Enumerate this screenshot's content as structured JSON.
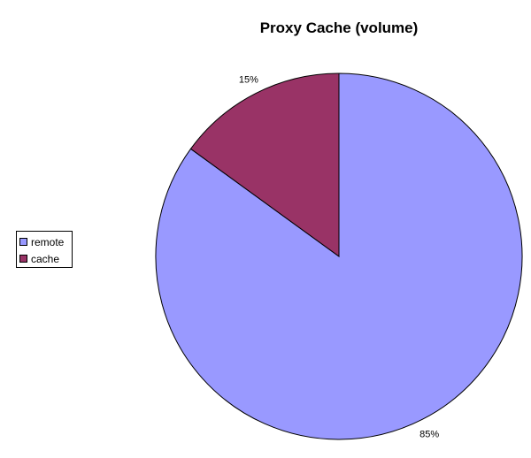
{
  "chart_data": {
    "type": "pie",
    "title": "Proxy Cache (volume)",
    "categories": [
      "remote",
      "cache"
    ],
    "values": [
      85,
      15
    ],
    "data_labels": [
      "85%",
      "15%"
    ],
    "colors": [
      "#9999ff",
      "#993366"
    ],
    "legend_position": "left"
  }
}
